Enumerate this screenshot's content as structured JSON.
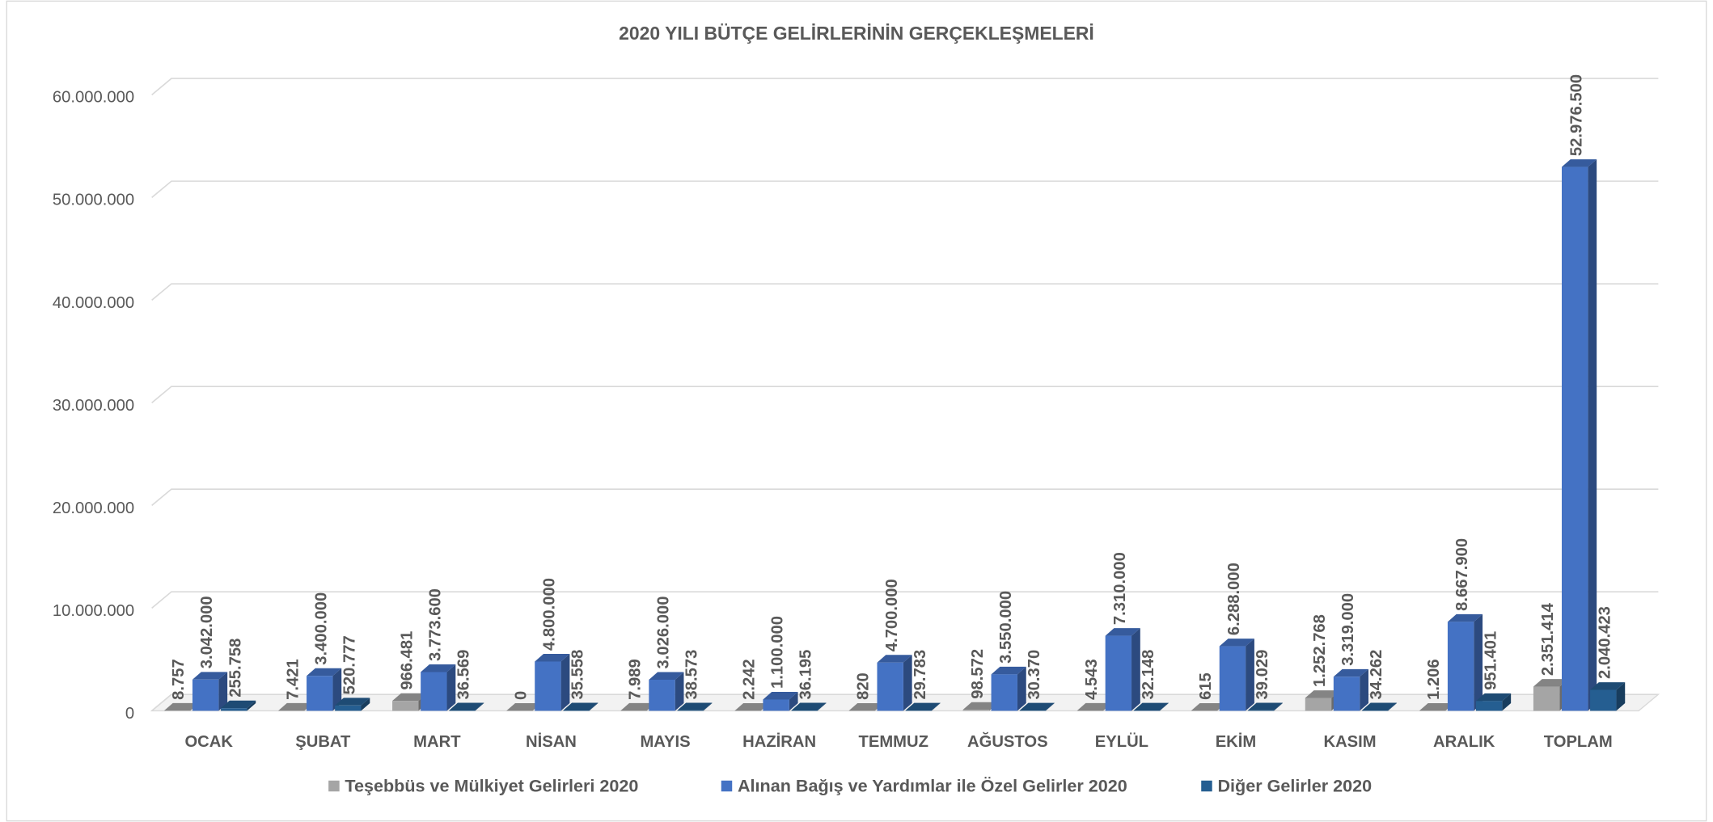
{
  "chart_data": {
    "type": "bar3d",
    "title": "2020 YILI BÜTÇE GELİRLERİNİN GERÇEKLEŞMELERİ",
    "categories": [
      "OCAK",
      "ŞUBAT",
      "MART",
      "NİSAN",
      "MAYIS",
      "HAZİRAN",
      "TEMMUZ",
      "AĞUSTOS",
      "EYLÜL",
      "EKİM",
      "KASIM",
      "ARALIK",
      "TOPLAM"
    ],
    "series": [
      {
        "name": "Teşebbüs ve Mülkiyet Gelirleri 2020",
        "color": "#a5a5a5",
        "values": [
          8757,
          7421,
          966481,
          0,
          7989,
          2242,
          820,
          98572,
          4543,
          615,
          1252768,
          1206,
          2351414
        ],
        "value_labels": [
          "8.757",
          "7.421",
          "966.481",
          "0",
          "7.989",
          "2.242",
          "820",
          "98.572",
          "4.543",
          "615",
          "1.252.768",
          "1.206",
          "2.351.414"
        ]
      },
      {
        "name": "Alınan Bağış ve Yardımlar ile Özel Gelirler 2020",
        "color": "#4472c4",
        "values": [
          3042000,
          3400000,
          3773600,
          4800000,
          3026000,
          1100000,
          4700000,
          3550000,
          7310000,
          6288000,
          3319000,
          8667900,
          52976500
        ],
        "value_labels": [
          "3.042.000",
          "3.400.000",
          "3.773.600",
          "4.800.000",
          "3.026.000",
          "1.100.000",
          "4.700.000",
          "3.550.000",
          "7.310.000",
          "6.288.000",
          "3.319.000",
          "8.667.900",
          "52.976.500"
        ]
      },
      {
        "name": "Diğer Gelirler 2020",
        "color": "#255e91",
        "values": [
          255758,
          520777,
          36569,
          35558,
          38573,
          36195,
          29783,
          30370,
          32148,
          39029,
          34262,
          951401,
          2040423
        ],
        "value_labels": [
          "255.758",
          "520.777",
          "36.569",
          "35.558",
          "38.573",
          "36.195",
          "29.783",
          "30.370",
          "32.148",
          "39.029",
          "34.262",
          "951.401",
          "2.040.423"
        ]
      }
    ],
    "ylim": [
      0,
      60000000
    ],
    "yticks": [
      0,
      {
        "value": 10000000,
        "label": "10.000.000"
      },
      {
        "value": 20000000,
        "label": "20.000.000"
      },
      {
        "value": 30000000,
        "label": "30.000.000"
      },
      {
        "value": 40000000,
        "label": "40.000.000"
      },
      {
        "value": 50000000,
        "label": "50.000.000"
      },
      {
        "value": 60000000,
        "label": "60.000.000"
      }
    ],
    "grid": true,
    "legend": "bottom"
  }
}
